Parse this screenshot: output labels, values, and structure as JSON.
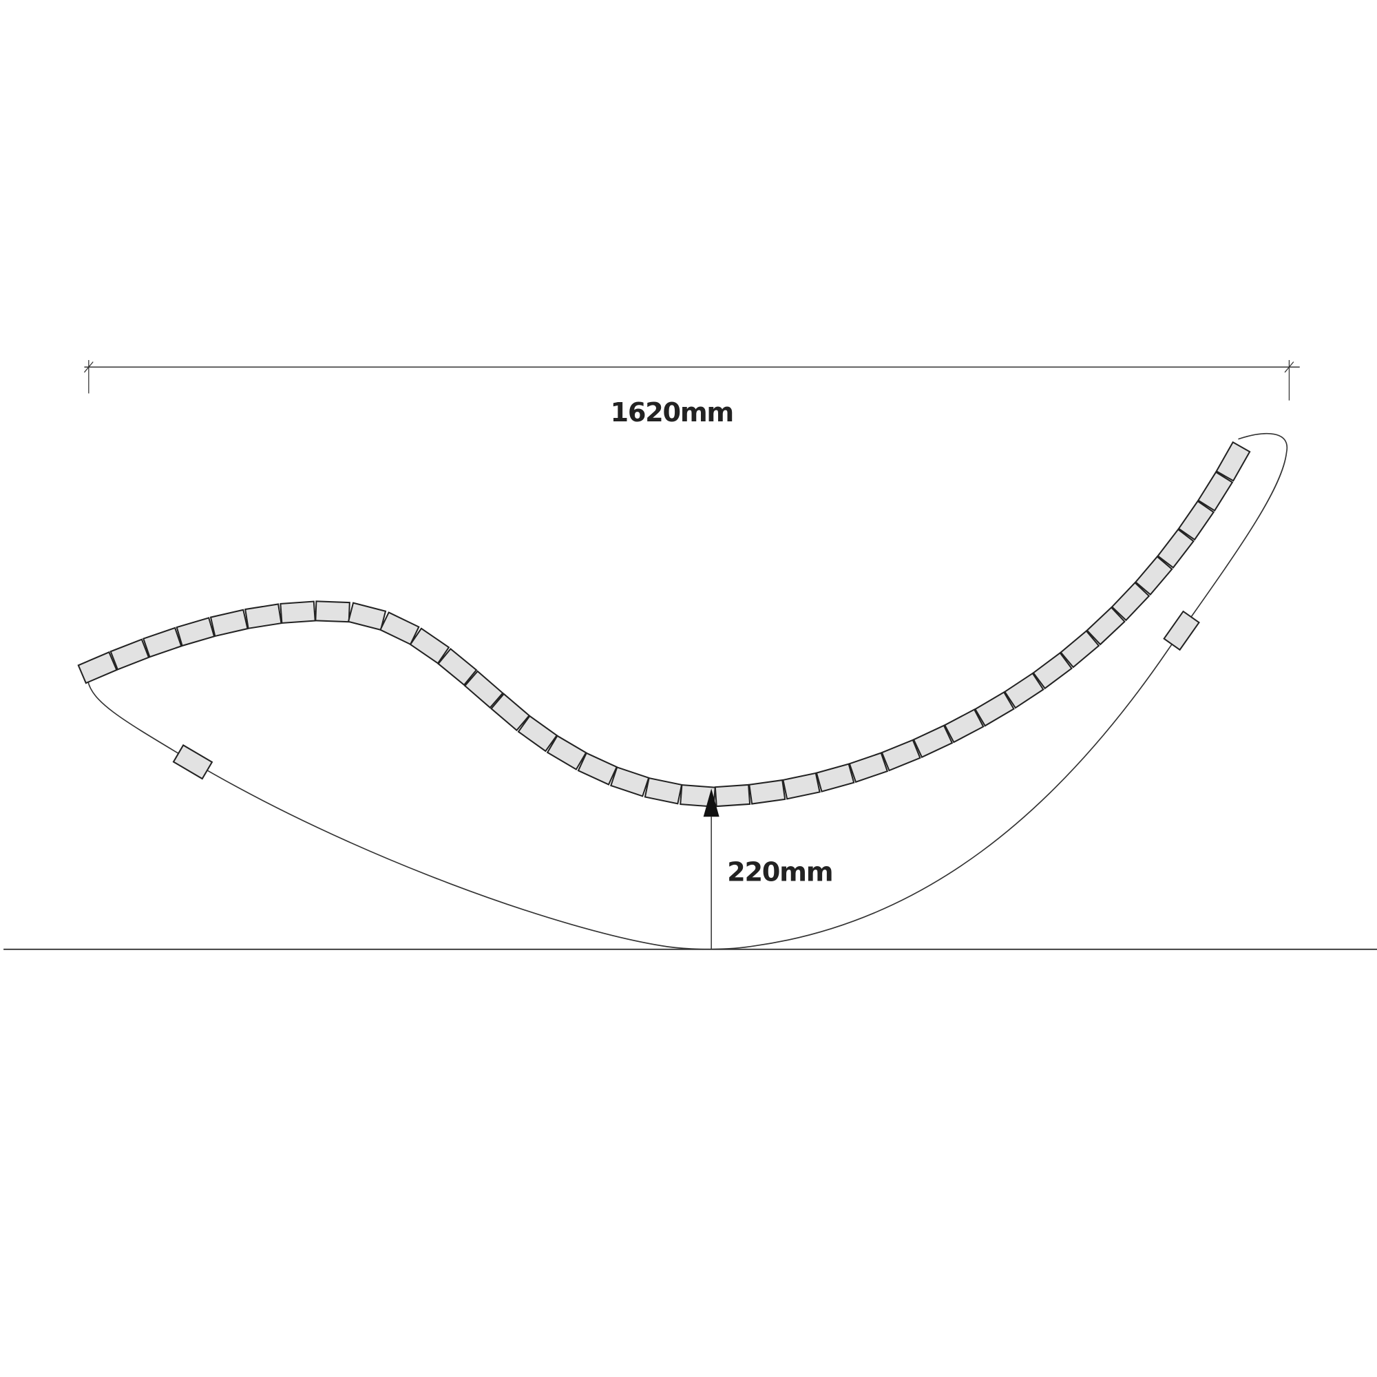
{
  "dimensions": {
    "overall_length": "1620mm",
    "height_to_ground": "220mm"
  },
  "colors": {
    "line": "#333333",
    "slat_fill": "#e2e2e2",
    "background": "#ffffff"
  }
}
